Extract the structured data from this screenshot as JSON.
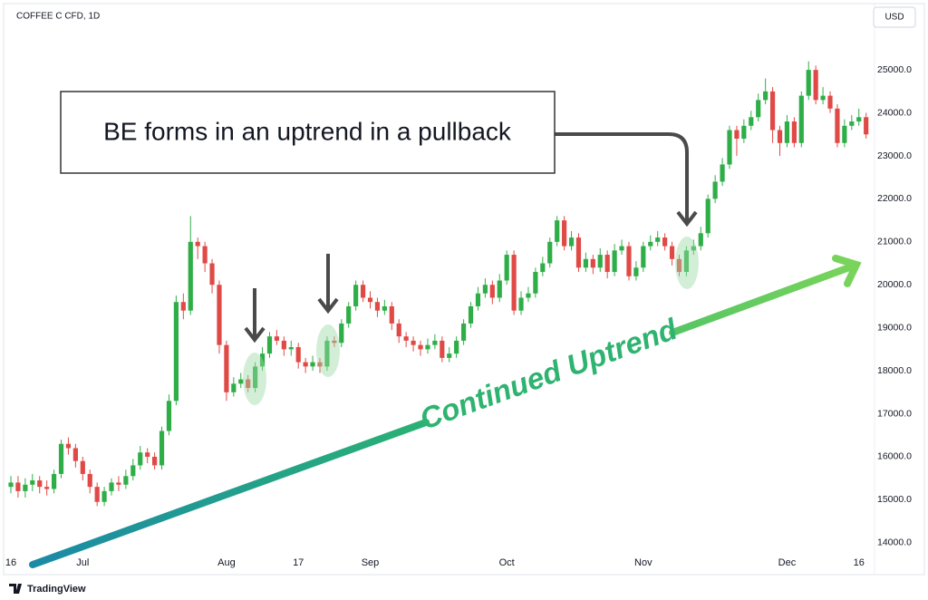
{
  "chart_data": {
    "type": "candlestick",
    "title": "COFFEE C CFD, 1D",
    "currency": "USD",
    "brand": "TradingView",
    "callout": "BE forms in an uptrend in a pullback",
    "trend_label": "Continued Uptrend",
    "categories": [
      "16",
      null,
      null,
      null,
      null,
      null,
      null,
      null,
      null,
      null,
      "Jul",
      null,
      null,
      null,
      null,
      null,
      null,
      null,
      null,
      null,
      null,
      null,
      null,
      null,
      null,
      null,
      null,
      null,
      null,
      null,
      "Aug",
      null,
      null,
      null,
      null,
      null,
      null,
      null,
      null,
      null,
      "17",
      null,
      null,
      null,
      null,
      null,
      null,
      null,
      null,
      null,
      "Sep",
      null,
      null,
      null,
      null,
      null,
      null,
      null,
      null,
      null,
      null,
      null,
      null,
      null,
      null,
      null,
      null,
      null,
      null,
      "Oct",
      null,
      null,
      null,
      null,
      null,
      null,
      null,
      null,
      null,
      null,
      null,
      null,
      null,
      null,
      null,
      null,
      null,
      null,
      "Nov",
      null,
      null,
      null,
      null,
      null,
      null,
      null,
      null,
      null,
      null,
      null,
      null,
      null,
      null,
      null,
      null,
      null,
      null,
      null,
      "Dec",
      null,
      null,
      null,
      null,
      null,
      null,
      null,
      null,
      null,
      "16",
      null
    ],
    "open": [
      15300,
      15400,
      15200,
      15350,
      15450,
      15300,
      15250,
      15600,
      16300,
      16200,
      15900,
      15600,
      15300,
      14950,
      15200,
      15400,
      15350,
      15550,
      15800,
      16100,
      16000,
      15800,
      16600,
      17300,
      19600,
      19400,
      21000,
      20900,
      20500,
      20000,
      18600,
      17500,
      17700,
      17800,
      17600,
      18100,
      18400,
      18800,
      18700,
      18500,
      18550,
      18200,
      18100,
      18200,
      18100,
      18700,
      18650,
      19100,
      19500,
      20000,
      19700,
      19600,
      19400,
      19500,
      19100,
      18800,
      18700,
      18600,
      18500,
      18600,
      18700,
      18300,
      18400,
      18700,
      19100,
      19500,
      19800,
      20000,
      19700,
      20100,
      20700,
      19400,
      19700,
      19800,
      20300,
      20500,
      21000,
      21500,
      20900,
      21100,
      20400,
      20600,
      20400,
      20700,
      20300,
      20800,
      20900,
      20200,
      20400,
      20900,
      21000,
      21100,
      20900,
      20600,
      20300,
      20800,
      20900,
      21200,
      22000,
      22400,
      22800,
      23600,
      23400,
      23700,
      23900,
      24300,
      24500,
      23600,
      23300,
      23800,
      23300,
      24400,
      25000,
      24300,
      24400,
      24100,
      23300,
      23700,
      23800,
      23900
    ],
    "high": [
      15550,
      15550,
      15500,
      15600,
      15550,
      15450,
      15700,
      16400,
      16450,
      16300,
      16000,
      15700,
      15400,
      15300,
      15500,
      15550,
      15700,
      15950,
      16250,
      16200,
      16100,
      16700,
      17450,
      19750,
      19800,
      21600,
      21100,
      21000,
      20600,
      20100,
      18700,
      17850,
      17950,
      17900,
      18200,
      18550,
      18900,
      18950,
      18800,
      18700,
      18650,
      18300,
      18350,
      18300,
      18800,
      18800,
      19200,
      19600,
      20100,
      20100,
      19850,
      19700,
      19650,
      19600,
      19200,
      18900,
      18800,
      18700,
      18750,
      18850,
      18800,
      18550,
      18800,
      19200,
      19600,
      19950,
      20150,
      20100,
      20250,
      20800,
      20800,
      19850,
      19950,
      20400,
      20650,
      21100,
      21600,
      21600,
      21250,
      21200,
      20750,
      20700,
      20850,
      20800,
      20950,
      21050,
      21000,
      20550,
      21000,
      21150,
      21250,
      21200,
      21000,
      20700,
      20900,
      21050,
      21350,
      22100,
      22550,
      22950,
      23700,
      23700,
      23850,
      24050,
      24450,
      24800,
      24600,
      23700,
      23950,
      23900,
      24500,
      25200,
      25100,
      24600,
      24500,
      24200,
      23850,
      23950,
      24100,
      24000
    ],
    "low": [
      15150,
      15050,
      15050,
      15200,
      15150,
      15100,
      15150,
      15500,
      16050,
      15750,
      15450,
      15150,
      14850,
      14850,
      15100,
      15200,
      15250,
      15450,
      15700,
      15850,
      15700,
      15700,
      16500,
      17200,
      19200,
      19300,
      20600,
      20300,
      19800,
      18400,
      17300,
      17400,
      17600,
      17500,
      17500,
      18000,
      18300,
      18600,
      18350,
      18350,
      18050,
      17950,
      18000,
      17950,
      18000,
      18550,
      18550,
      19000,
      19400,
      19600,
      19450,
      19250,
      19300,
      18950,
      18650,
      18550,
      18450,
      18350,
      18400,
      18500,
      18200,
      18200,
      18300,
      18600,
      19000,
      19400,
      19700,
      19550,
      19600,
      20000,
      19300,
      19300,
      19600,
      19700,
      20200,
      20400,
      20900,
      20800,
      20800,
      20300,
      20300,
      20250,
      20300,
      20150,
      20200,
      20700,
      20100,
      20100,
      20300,
      20800,
      20900,
      20800,
      20450,
      20200,
      20200,
      20700,
      20800,
      21100,
      21900,
      22300,
      22700,
      23000,
      23300,
      23600,
      23800,
      24200,
      23300,
      23000,
      23200,
      23200,
      23200,
      24300,
      24200,
      24200,
      24000,
      23200,
      23200,
      23600,
      23700,
      23400
    ],
    "close": [
      15400,
      15200,
      15350,
      15450,
      15300,
      15250,
      15600,
      16300,
      16200,
      15900,
      15600,
      15300,
      14950,
      15200,
      15400,
      15350,
      15550,
      15800,
      16100,
      16000,
      15800,
      16600,
      17300,
      19600,
      19400,
      21000,
      20900,
      20500,
      20000,
      18600,
      17500,
      17700,
      17800,
      17600,
      18100,
      18400,
      18800,
      18700,
      18500,
      18550,
      18200,
      18100,
      18200,
      18100,
      18700,
      18650,
      19100,
      19500,
      20000,
      19700,
      19600,
      19400,
      19500,
      19100,
      18800,
      18700,
      18600,
      18500,
      18600,
      18700,
      18300,
      18400,
      18700,
      19100,
      19500,
      19800,
      20000,
      19700,
      20100,
      20700,
      19400,
      19700,
      19800,
      20300,
      20500,
      21000,
      21500,
      20900,
      21100,
      20400,
      20600,
      20400,
      20700,
      20300,
      20800,
      20900,
      20200,
      20400,
      20900,
      21000,
      21100,
      20900,
      20600,
      20300,
      20800,
      20900,
      21200,
      22000,
      22400,
      22800,
      23600,
      23400,
      23700,
      23900,
      24300,
      24500,
      23600,
      23300,
      23800,
      23300,
      24400,
      25000,
      24300,
      24400,
      24100,
      23300,
      23700,
      23800,
      23900,
      23500
    ],
    "up_color": "#2fae48",
    "down_color": "#e04a46",
    "ylim": [
      13300,
      26500
    ],
    "yticks": [
      {
        "value": 14000,
        "label": "14000.0"
      },
      {
        "value": 15000,
        "label": "15000.0"
      },
      {
        "value": 16000,
        "label": "16000.0"
      },
      {
        "value": 17000,
        "label": "17000.0"
      },
      {
        "value": 18000,
        "label": "18000.0"
      },
      {
        "value": 19000,
        "label": "19000.0"
      },
      {
        "value": 20000,
        "label": "20000.0"
      },
      {
        "value": 21000,
        "label": "21000.0"
      },
      {
        "value": 22000,
        "label": "22000.0"
      },
      {
        "value": 23000,
        "label": "23000.0"
      },
      {
        "value": 24000,
        "label": "24000.0"
      },
      {
        "value": 25000,
        "label": "25000.0"
      }
    ],
    "grid": false
  }
}
